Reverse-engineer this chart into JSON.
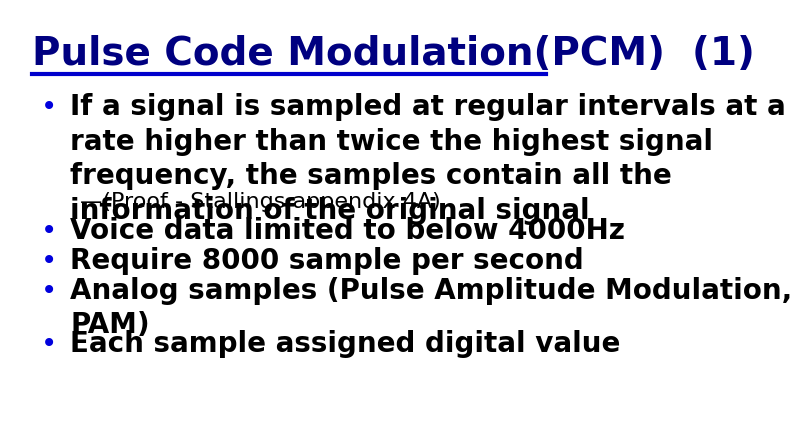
{
  "title": "Pulse Code Modulation(PCM)  (1)",
  "title_color": "#000080",
  "title_fontsize": 28,
  "title_fontweight": "bold",
  "line_color": "#0000cc",
  "background_color": "#ffffff",
  "bullet_color": "#0000dd",
  "bullet_items": [
    {
      "text": "If a signal is sampled at regular intervals at a\nrate higher than twice the highest signal\nfrequency, the samples contain all the\ninformation of the original signal",
      "indent": 0,
      "fontsize": 20,
      "fontweight": "bold",
      "color": "#000000",
      "no_bullet": false
    },
    {
      "text": "—(Proof - Stallings appendix 4A)",
      "indent": 1,
      "fontsize": 16,
      "fontweight": "normal",
      "color": "#000000",
      "no_bullet": true
    },
    {
      "text": "Voice data limited to below 4000Hz",
      "indent": 0,
      "fontsize": 20,
      "fontweight": "bold",
      "color": "#000000",
      "no_bullet": false
    },
    {
      "text": "Require 8000 sample per second",
      "indent": 0,
      "fontsize": 20,
      "fontweight": "bold",
      "color": "#000000",
      "no_bullet": false
    },
    {
      "text": "Analog samples (Pulse Amplitude Modulation,\nPAM)",
      "indent": 0,
      "fontsize": 20,
      "fontweight": "bold",
      "color": "#000000",
      "no_bullet": false
    },
    {
      "text": "Each sample assigned digital value",
      "indent": 0,
      "fontsize": 20,
      "fontweight": "bold",
      "color": "#000000",
      "no_bullet": false
    }
  ]
}
